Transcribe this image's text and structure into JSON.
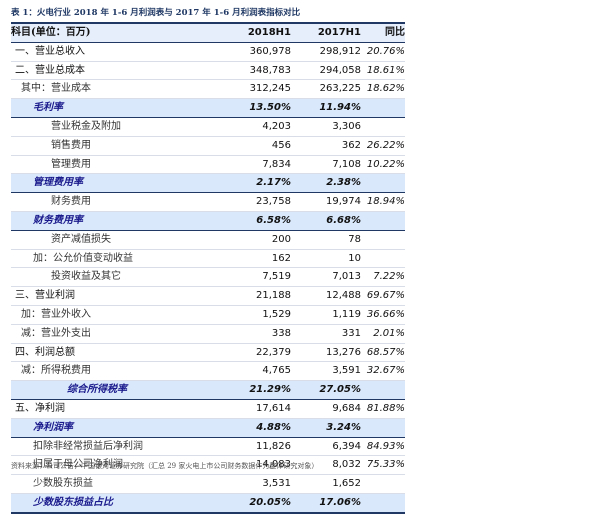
{
  "caption": "表 1：火电行业 2018 年 1-6 月利润表与 2017 年 1-6 月利润表指标对比",
  "headers": {
    "name": "科目(单位：百万)",
    "y1": "2018H1",
    "y2": "2017H1",
    "yoy": "同比"
  },
  "rows": [
    {
      "name": "一、营业总收入",
      "v1": "360,978",
      "v2": "298,912",
      "yoy": "20.76%",
      "level": "lv0",
      "hl": false
    },
    {
      "name": "二、营业总成本",
      "v1": "348,783",
      "v2": "294,058",
      "yoy": "18.61%",
      "level": "lv0",
      "hl": false
    },
    {
      "name": "其中：营业成本",
      "v1": "312,245",
      "v2": "263,225",
      "yoy": "18.62%",
      "level": "lv-out",
      "hl": false
    },
    {
      "name": "毛利率",
      "v1": "13.50%",
      "v2": "11.94%",
      "yoy": "",
      "level": "lv1",
      "hl": true
    },
    {
      "name": "营业税金及附加",
      "v1": "4,203",
      "v2": "3,306",
      "yoy": "",
      "level": "lv2",
      "hl": false
    },
    {
      "name": "销售费用",
      "v1": "456",
      "v2": "362",
      "yoy": "26.22%",
      "level": "lv2",
      "hl": false
    },
    {
      "name": "管理费用",
      "v1": "7,834",
      "v2": "7,108",
      "yoy": "10.22%",
      "level": "lv2",
      "hl": false
    },
    {
      "name": "管理费用率",
      "v1": "2.17%",
      "v2": "2.38%",
      "yoy": "",
      "level": "lv1",
      "hl": true
    },
    {
      "name": "财务费用",
      "v1": "23,758",
      "v2": "19,974",
      "yoy": "18.94%",
      "level": "lv2",
      "hl": false
    },
    {
      "name": "财务费用率",
      "v1": "6.58%",
      "v2": "6.68%",
      "yoy": "",
      "level": "lv1",
      "hl": true
    },
    {
      "name": "资产减值损失",
      "v1": "200",
      "v2": "78",
      "yoy": "",
      "level": "lv2",
      "hl": false
    },
    {
      "name": "加：公允价值变动收益",
      "v1": "162",
      "v2": "10",
      "yoy": "",
      "level": "lv1",
      "hl": false
    },
    {
      "name": "投资收益及其它",
      "v1": "7,519",
      "v2": "7,013",
      "yoy": "7.22%",
      "level": "lv2",
      "hl": false
    },
    {
      "name": "三、营业利润",
      "v1": "21,188",
      "v2": "12,488",
      "yoy": "69.67%",
      "level": "lv0",
      "hl": false
    },
    {
      "name": "加：营业外收入",
      "v1": "1,529",
      "v2": "1,119",
      "yoy": "36.66%",
      "level": "lv-out",
      "hl": false
    },
    {
      "name": "减：营业外支出",
      "v1": "338",
      "v2": "331",
      "yoy": "2.01%",
      "level": "lv-out",
      "hl": false
    },
    {
      "name": "四、利润总额",
      "v1": "22,379",
      "v2": "13,276",
      "yoy": "68.57%",
      "level": "lv0",
      "hl": false
    },
    {
      "name": "减：所得税费用",
      "v1": "4,765",
      "v2": "3,591",
      "yoy": "32.67%",
      "level": "lv-out",
      "hl": false
    },
    {
      "name": "综合所得税率",
      "v1": "21.29%",
      "v2": "27.05%",
      "yoy": "",
      "level": "lv3",
      "hl": true
    },
    {
      "name": "五、净利润",
      "v1": "17,614",
      "v2": "9,684",
      "yoy": "81.88%",
      "level": "lv0",
      "hl": false
    },
    {
      "name": "净利润率",
      "v1": "4.88%",
      "v2": "3.24%",
      "yoy": "",
      "level": "lv1",
      "hl": true
    },
    {
      "name": "扣除非经常损益后净利润",
      "v1": "11,826",
      "v2": "6,394",
      "yoy": "84.93%",
      "level": "lv1",
      "hl": false
    },
    {
      "name": "归属于母公司净利润",
      "v1": "14,083",
      "v2": "8,032",
      "yoy": "75.33%",
      "level": "lv1",
      "hl": false
    },
    {
      "name": "少数股东损益",
      "v1": "3,531",
      "v2": "1,652",
      "yoy": "",
      "level": "lv1",
      "hl": false
    },
    {
      "name": "少数股东损益占比",
      "v1": "20.05%",
      "v2": "17.06%",
      "yoy": "",
      "level": "lv1",
      "hl": true
    }
  ],
  "source": "资料来源：公司公告，中国银河证券研究院（汇总 29 家火电上市公司财务数据作为整体研究对象）"
}
